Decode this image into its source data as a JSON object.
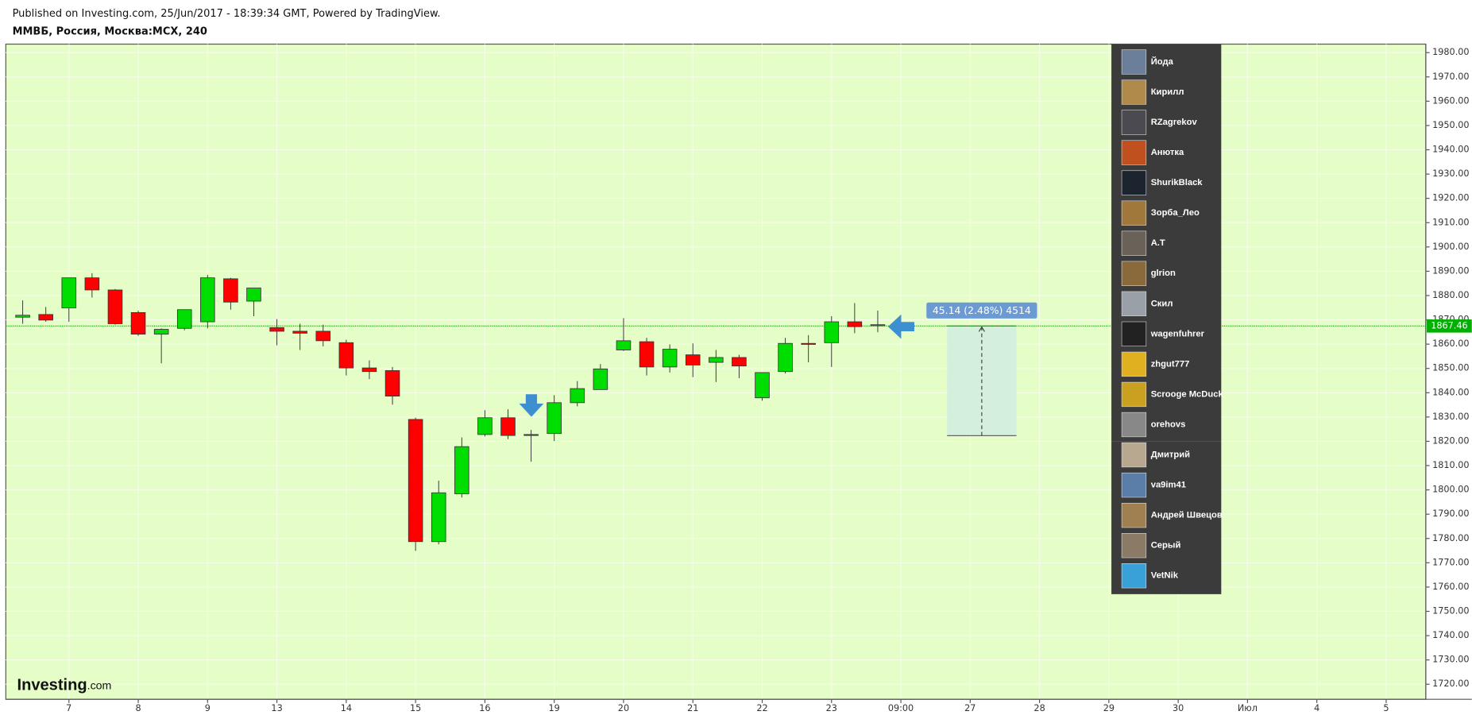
{
  "chart_data": {
    "type": "candlestick",
    "header_note": "Published on Investing.com, 25/Jun/2017 - 18:39:34 GMT, Powered by TradingView.",
    "title": "ММВБ, Россия, Москва:MCX, 240",
    "background": "#e5fdc6",
    "up_color": "#00dd00",
    "down_color": "#ff0000",
    "grid": true,
    "x": [
      0,
      1,
      2,
      3,
      4,
      5,
      6,
      7,
      8,
      9,
      10,
      11,
      12,
      13,
      14,
      15,
      16,
      17,
      18,
      19,
      20,
      21,
      22,
      23,
      24,
      25,
      26,
      27,
      28,
      29,
      30,
      31,
      32,
      33,
      34,
      35,
      36,
      37
    ],
    "open": [
      1871.1,
      1872.2,
      1874.9,
      1887.3,
      1882.3,
      1873.0,
      1864.1,
      1866.5,
      1869.2,
      1886.9,
      1877.7,
      1866.8,
      1865.3,
      1865.3,
      1860.6,
      1850.2,
      1849.1,
      1829.0,
      1778.7,
      1798.4,
      1822.8,
      1829.7,
      1822.8,
      1823.2,
      1835.9,
      1841.3,
      1857.6,
      1861.0,
      1850.6,
      1855.6,
      1852.5,
      1854.5,
      1837.9,
      1848.7,
      1860.3,
      1860.6,
      1869.2,
      1867.6
    ],
    "high": [
      1878.0,
      1875.3,
      1887.3,
      1889.2,
      1882.7,
      1873.8,
      1866.5,
      1874.2,
      1888.5,
      1887.3,
      1883.1,
      1870.3,
      1868.4,
      1868.0,
      1861.8,
      1853.3,
      1850.6,
      1829.7,
      1803.8,
      1821.6,
      1832.8,
      1833.2,
      1824.7,
      1839.0,
      1844.8,
      1851.8,
      1870.7,
      1862.6,
      1859.9,
      1860.3,
      1857.6,
      1855.6,
      1848.3,
      1862.6,
      1863.7,
      1871.5,
      1876.9,
      1873.8
    ],
    "low": [
      1868.4,
      1869.2,
      1869.2,
      1879.2,
      1868.0,
      1863.4,
      1852.1,
      1865.7,
      1866.5,
      1874.2,
      1871.5,
      1859.5,
      1857.6,
      1859.1,
      1847.1,
      1845.6,
      1835.1,
      1774.9,
      1777.6,
      1796.9,
      1822.0,
      1820.9,
      1811.6,
      1820.1,
      1834.4,
      1841.3,
      1857.2,
      1847.1,
      1848.3,
      1846.4,
      1844.4,
      1846.0,
      1836.7,
      1847.9,
      1852.5,
      1850.6,
      1864.5,
      1864.9
    ],
    "close": [
      1871.9,
      1869.9,
      1887.3,
      1882.3,
      1868.4,
      1864.1,
      1866.1,
      1874.2,
      1887.3,
      1877.3,
      1883.1,
      1865.3,
      1864.5,
      1861.4,
      1850.2,
      1848.7,
      1838.6,
      1778.7,
      1798.8,
      1817.8,
      1829.7,
      1822.4,
      1822.4,
      1835.9,
      1841.7,
      1849.8,
      1861.4,
      1850.6,
      1857.9,
      1851.4,
      1854.5,
      1851.0,
      1848.3,
      1860.3,
      1859.9,
      1869.2,
      1867.2,
      1868.0
    ],
    "xlim": [
      -0.731,
      60.716
    ],
    "xticks": [
      {
        "value": 2,
        "label": "7"
      },
      {
        "value": 5,
        "label": "8"
      },
      {
        "value": 8,
        "label": "9"
      },
      {
        "value": 11,
        "label": "13"
      },
      {
        "value": 14,
        "label": "14"
      },
      {
        "value": 17,
        "label": "15"
      },
      {
        "value": 20,
        "label": "16"
      },
      {
        "value": 23,
        "label": "19"
      },
      {
        "value": 26,
        "label": "20"
      },
      {
        "value": 29,
        "label": "21"
      },
      {
        "value": 32,
        "label": "22"
      },
      {
        "value": 35,
        "label": "23"
      },
      {
        "value": 38,
        "label": "09:00"
      },
      {
        "value": 41,
        "label": "27"
      },
      {
        "value": 44,
        "label": "28"
      },
      {
        "value": 47,
        "label": "29"
      },
      {
        "value": 50,
        "label": "30"
      },
      {
        "value": 53,
        "label": "Июл"
      },
      {
        "value": 56,
        "label": "4"
      },
      {
        "value": 59,
        "label": "5"
      }
    ],
    "ylim": [
      1713.8,
      1983.5
    ],
    "yticks": [
      {
        "value": 1720,
        "label": "1720.00"
      },
      {
        "value": 1730,
        "label": "1730.00"
      },
      {
        "value": 1740,
        "label": "1740.00"
      },
      {
        "value": 1750,
        "label": "1750.00"
      },
      {
        "value": 1760,
        "label": "1760.00"
      },
      {
        "value": 1770,
        "label": "1770.00"
      },
      {
        "value": 1780,
        "label": "1780.00"
      },
      {
        "value": 1790,
        "label": "1790.00"
      },
      {
        "value": 1800,
        "label": "1800.00"
      },
      {
        "value": 1810,
        "label": "1810.00"
      },
      {
        "value": 1820,
        "label": "1820.00"
      },
      {
        "value": 1830,
        "label": "1830.00"
      },
      {
        "value": 1840,
        "label": "1840.00"
      },
      {
        "value": 1850,
        "label": "1850.00"
      },
      {
        "value": 1860,
        "label": "1860.00"
      },
      {
        "value": 1870,
        "label": "1870.00"
      },
      {
        "value": 1880,
        "label": "1880.00"
      },
      {
        "value": 1890,
        "label": "1890.00"
      },
      {
        "value": 1900,
        "label": "1900.00"
      },
      {
        "value": 1910,
        "label": "1910.00"
      },
      {
        "value": 1920,
        "label": "1920.00"
      },
      {
        "value": 1930,
        "label": "1930.00"
      },
      {
        "value": 1940,
        "label": "1940.00"
      },
      {
        "value": 1950,
        "label": "1950.00"
      },
      {
        "value": 1960,
        "label": "1960.00"
      },
      {
        "value": 1970,
        "label": "1970.00"
      },
      {
        "value": 1980,
        "label": "1980.00"
      }
    ],
    "last_price": 1867.46,
    "measure": {
      "label": "45.14 (2.48%) 4514",
      "from": 1822.32,
      "to": 1867.46,
      "x_from": 40,
      "x_to": 43
    },
    "logo": {
      "name": "Investing",
      "suffix": ".com"
    },
    "users": [
      "Йода",
      "Кирилл",
      "RZagrekov",
      "Анютка",
      "ShurikBlack",
      "Зорба_Лео",
      "A.T",
      "glrion",
      "Скил",
      "wagenfuhrer",
      "zhgut777",
      "Scrooge McDuck",
      "orehovs",
      "Дмитрий",
      "va9im41",
      "Андрей Швецов",
      "Серый",
      "VetNik"
    ]
  }
}
